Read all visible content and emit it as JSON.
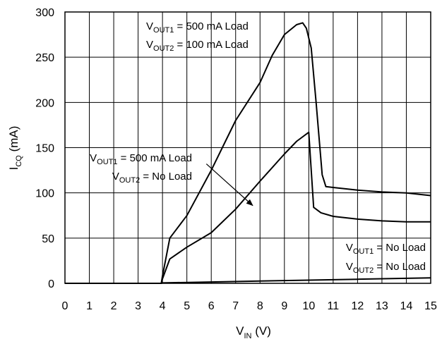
{
  "chart_data": {
    "type": "line",
    "title": "",
    "xlabel": {
      "main": "V",
      "sub": "IN",
      "unit": " (V)"
    },
    "ylabel": {
      "main": "I",
      "sub": "CQ",
      "unit": " (mA)"
    },
    "xlim": [
      0,
      15
    ],
    "ylim": [
      0,
      300
    ],
    "xticks": [
      "0",
      "1",
      "2",
      "3",
      "4",
      "5",
      "6",
      "7",
      "8",
      "9",
      "10",
      "11",
      "12",
      "13",
      "14",
      "15"
    ],
    "yticks": [
      "0",
      "50",
      "100",
      "150",
      "200",
      "250",
      "300"
    ],
    "grid": true,
    "series": [
      {
        "x": [
          0,
          3.95,
          4.0,
          4.3,
          5.0,
          6.0,
          7.0,
          8.0,
          8.5,
          9.0,
          9.5,
          9.75,
          9.9,
          10.1,
          10.3,
          10.55,
          10.7,
          11.0,
          12.0,
          13.0,
          14.0,
          15.0
        ],
        "y": [
          0,
          0,
          8,
          50,
          75,
          125,
          180,
          222,
          252,
          275,
          286,
          288,
          282,
          260,
          200,
          120,
          107,
          106,
          103,
          101,
          100,
          97
        ]
      },
      {
        "x": [
          0,
          3.95,
          4.0,
          4.3,
          5.0,
          6.0,
          7.0,
          8.0,
          9.0,
          9.5,
          10.0,
          10.2,
          10.5,
          11.0,
          12.0,
          13.0,
          14.0,
          15.0
        ],
        "y": [
          0,
          0,
          5,
          27,
          40,
          56,
          82,
          113,
          143,
          157,
          167,
          84,
          78,
          74,
          71,
          69,
          68,
          68
        ]
      },
      {
        "x": [
          0,
          3.95,
          4.0,
          6.0,
          8.0,
          10.0,
          12.0,
          14.0,
          15.0
        ],
        "y": [
          0,
          0,
          0.5,
          1.5,
          2.5,
          3.5,
          4.5,
          5.5,
          6
        ]
      }
    ],
    "annotations": [
      {
        "lines": [
          [
            "V",
            "OUT1",
            " = 500 mA Load"
          ],
          [
            "V",
            "OUT2",
            " = 100 mA Load"
          ]
        ]
      },
      {
        "lines": [
          [
            "V",
            "OUT1",
            " = 500 mA Load"
          ],
          [
            "V",
            "OUT2",
            " = No Load"
          ]
        ],
        "arrow": {
          "from": [
            5.8,
            132
          ],
          "to": [
            7.7,
            86
          ]
        }
      },
      {
        "lines": [
          [
            "V",
            "OUT1",
            " = No Load"
          ],
          [
            "V",
            "OUT2",
            " = No Load"
          ]
        ]
      }
    ]
  }
}
